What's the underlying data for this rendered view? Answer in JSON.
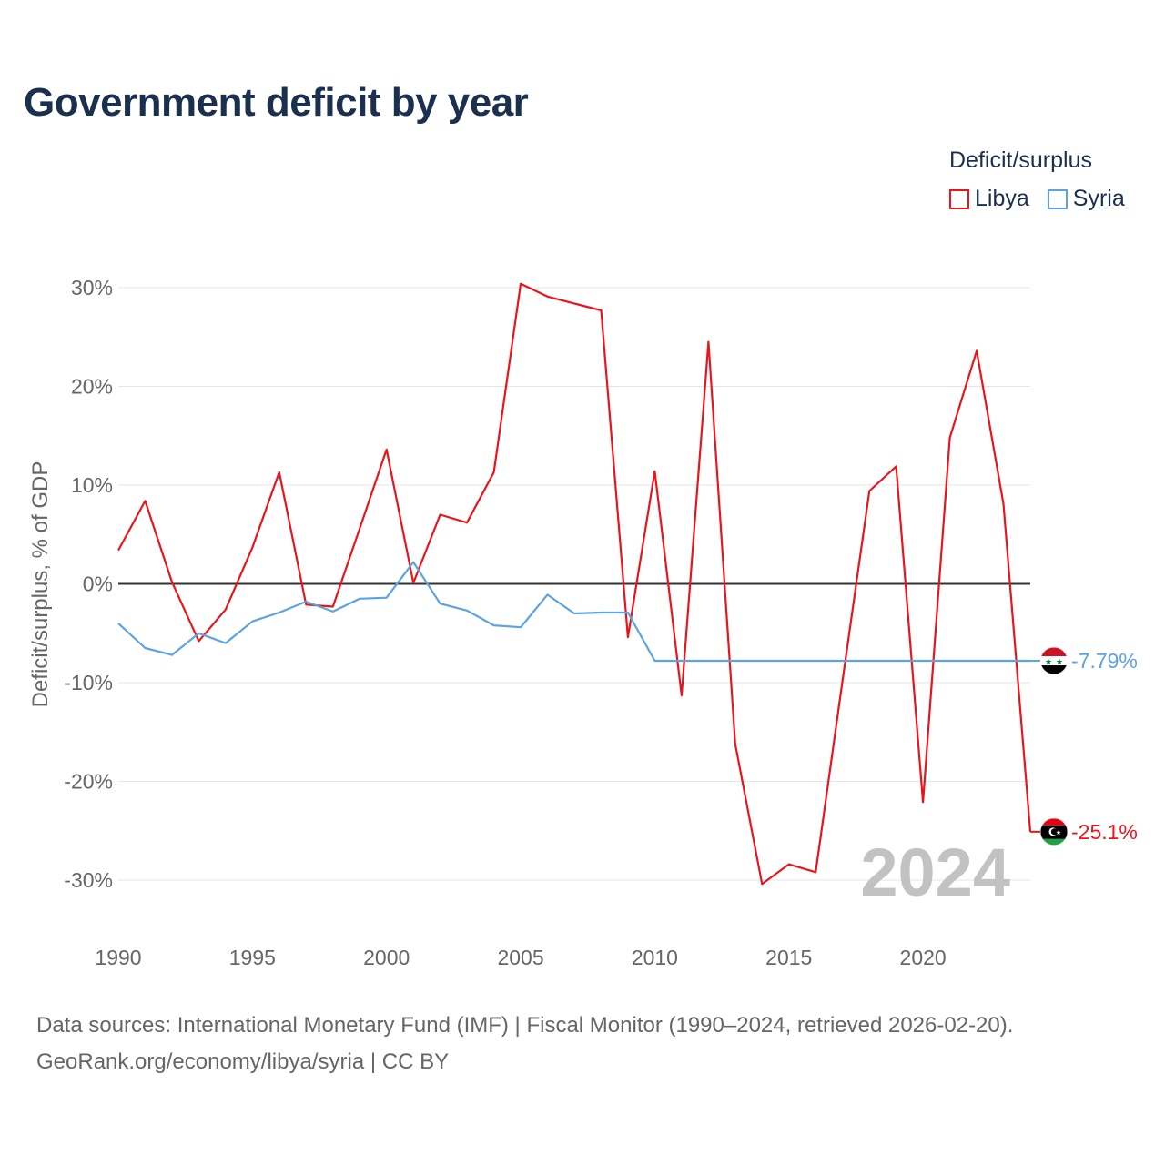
{
  "chart_data": {
    "type": "line",
    "title": "Government deficit by year",
    "xlabel": "",
    "ylabel": "Deficit/surplus, % of GDP",
    "xlim": [
      1990,
      2024
    ],
    "ylim": [
      -35,
      33
    ],
    "x_ticks": [
      1990,
      1995,
      2000,
      2005,
      2010,
      2015,
      2020
    ],
    "x_tick_labels": [
      "1990",
      "1995",
      "2000",
      "2005",
      "2010",
      "2015",
      "2020"
    ],
    "y_ticks": [
      30,
      20,
      10,
      0,
      -10,
      -20,
      -30
    ],
    "y_tick_labels": [
      "30%",
      "20%",
      "10%",
      "0%",
      "-10%",
      "-20%",
      "-30%"
    ],
    "legend_title": "Deficit/surplus",
    "legend_position": "top-right",
    "year_label": "2024",
    "grid": true,
    "x": [
      1990,
      1991,
      1992,
      1993,
      1994,
      1995,
      1996,
      1997,
      1998,
      1999,
      2000,
      2001,
      2002,
      2003,
      2004,
      2005,
      2006,
      2007,
      2008,
      2009,
      2010,
      2011,
      2012,
      2013,
      2014,
      2015,
      2016,
      2017,
      2018,
      2019,
      2020,
      2021,
      2022,
      2023,
      2024
    ],
    "series": [
      {
        "name": "Libya",
        "color": "#e8151b",
        "end_label": "-25.1%",
        "values": [
          3.4,
          8.4,
          0.2,
          -5.8,
          -2.6,
          3.7,
          11.3,
          -2.1,
          -2.3,
          5.6,
          13.6,
          0.1,
          7.0,
          6.2,
          11.3,
          30.4,
          29.1,
          28.4,
          27.7,
          -5.4,
          11.4,
          -11.3,
          24.5,
          -16.2,
          -30.4,
          -28.4,
          -29.2,
          -9.8,
          9.4,
          11.9,
          -22.1,
          14.8,
          23.6,
          8.1,
          -25.1
        ]
      },
      {
        "name": "Syria",
        "color": "#5ca3e0",
        "end_label": "-7.79%",
        "values": [
          -4.0,
          -6.5,
          -7.2,
          -5.0,
          -6.0,
          -3.8,
          -2.9,
          -1.8,
          -2.8,
          -1.5,
          -1.4,
          2.2,
          -2.0,
          -2.7,
          -4.2,
          -4.4,
          -1.1,
          -3.0,
          -2.9,
          -2.9,
          -7.79,
          -7.79,
          -7.79,
          -7.79,
          -7.79,
          -7.79,
          -7.79,
          -7.79,
          -7.79,
          -7.79,
          -7.79,
          -7.79,
          -7.79,
          -7.79,
          -7.79
        ]
      }
    ]
  },
  "footer": {
    "line1": "Data sources: International Monetary Fund (IMF) | Fiscal Monitor (1990–2024, retrieved 2026-02-20).",
    "line2": "GeoRank.org/economy/libya/syria | CC BY"
  }
}
